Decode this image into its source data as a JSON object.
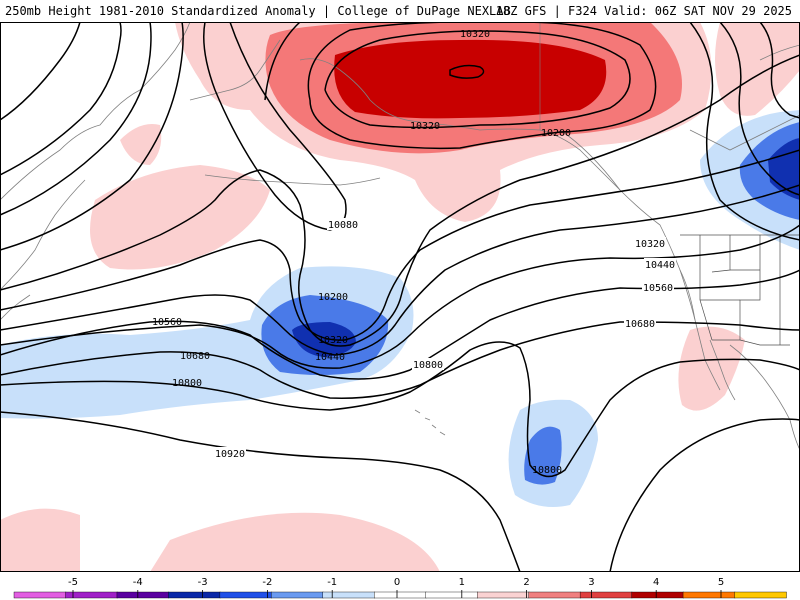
{
  "header": {
    "title_left": "250mb Height 1981-2010 Standardized Anomaly | College of DuPage NEXLAB",
    "title_right": "18Z GFS | F324 Valid: 06Z SAT NOV 29 2025"
  },
  "contour_labels": [
    {
      "id": "l10320_top",
      "text": "10320"
    },
    {
      "id": "l10320_ak",
      "text": "10320"
    },
    {
      "id": "l10200_ne",
      "text": "10200"
    },
    {
      "id": "l10080",
      "text": "10080"
    },
    {
      "id": "l10200_low",
      "text": "10200"
    },
    {
      "id": "l10320_low",
      "text": "10320"
    },
    {
      "id": "l10440_low",
      "text": "10440"
    },
    {
      "id": "l10560_w",
      "text": "10560"
    },
    {
      "id": "l10680_w",
      "text": "10680"
    },
    {
      "id": "l10800_w",
      "text": "10800"
    },
    {
      "id": "l10800_c",
      "text": "10800"
    },
    {
      "id": "l10920",
      "text": "10920"
    },
    {
      "id": "l10800_s",
      "text": "10800"
    },
    {
      "id": "l10320_e",
      "text": "10320"
    },
    {
      "id": "l10440_e",
      "text": "10440"
    },
    {
      "id": "l10560_e",
      "text": "10560"
    },
    {
      "id": "l10680_e",
      "text": "10680"
    }
  ],
  "colorbar": {
    "ticks": [
      "-5",
      "-4",
      "-3",
      "-2",
      "-1",
      "0",
      "1",
      "2",
      "3",
      "4",
      "5"
    ],
    "colors": [
      "#e25ee2",
      "#a020c8",
      "#5a00a0",
      "#0a28a8",
      "#2050e8",
      "#6a9af0",
      "#c8e0fa",
      "#ffffff",
      "#ffffff",
      "#fad2d2",
      "#f08080",
      "#e04040",
      "#b00000",
      "#ff7800",
      "#ffc800"
    ]
  },
  "shading_colors": {
    "anom_pos1": "#fbd0d0",
    "anom_pos2": "#f47878",
    "anom_pos3": "#c80000",
    "anom_neg1": "#c8e0fa",
    "anom_neg2": "#4a7ae8",
    "anom_neg3": "#1030b0"
  }
}
